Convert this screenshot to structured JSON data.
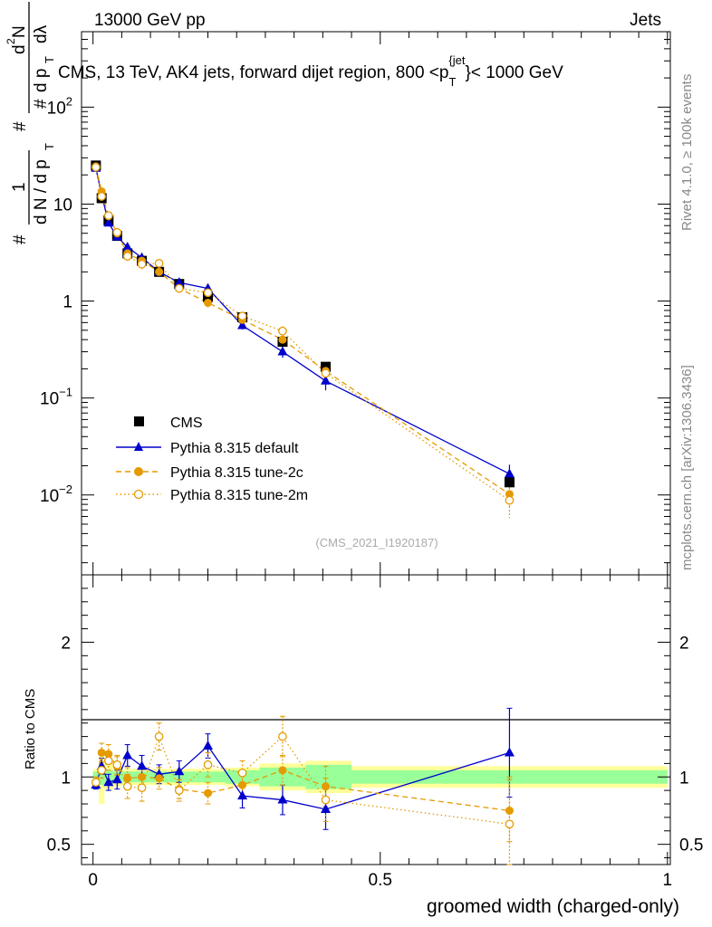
{
  "header": {
    "left": "13000 GeV pp",
    "right": "Jets"
  },
  "side": {
    "rivet": "Rivet 4.1.0, ≥ 100k events",
    "mcplots": "mcplots.cern.ch [arXiv:1306.3436]"
  },
  "watermark": "(CMS_2021_I1920187)",
  "colors": {
    "cms": "#000000",
    "default": "#0000cc",
    "tune2c": "#e59a00",
    "tune2m": "#e59a00",
    "band_inner": "#99ff99",
    "band_outer": "#ffff99"
  },
  "chart_data": [
    {
      "type": "scatter",
      "panel": "main",
      "title": "CMS, 13 TeV, AK4 jets, forward dijet region, 800 <p_T^{jet}< 1000 GeV",
      "title_parts": {
        "a": "CMS, 13 TeV, AK4 jets, forward dijet region, 800 <p",
        "sub": "T",
        "sup": "{jet",
        "b": "}< 1000 GeV"
      },
      "ylabel": "1/dN/dp_T  d²N/dp_T dλ",
      "ylabel_parts": {
        "one": "1",
        "hash": "#",
        "den": "d N / d p",
        "numer": "d",
        "numer_sup": "2",
        "numer_n": "N",
        "den2": "d p",
        "lam": "dλ",
        "t": "T"
      },
      "yscale": "log",
      "ylim": [
        0.0015,
        600
      ],
      "xlim": [
        -0.02,
        1.005
      ],
      "ytick_labels": [
        {
          "v": 0.01,
          "base": "10",
          "exp": "−2"
        },
        {
          "v": 0.1,
          "base": "10",
          "exp": "−1"
        },
        {
          "v": 1,
          "text": "1"
        },
        {
          "v": 10,
          "text": "10"
        },
        {
          "v": 100,
          "base": "10",
          "exp": "2"
        }
      ],
      "legend": {
        "position": "left-middle",
        "entries": [
          "CMS",
          "Pythia 8.315 default",
          "Pythia 8.315 tune-2c",
          "Pythia 8.315 tune-2m"
        ]
      },
      "series": [
        {
          "name": "CMS",
          "x": [
            0.005,
            0.015,
            0.027,
            0.042,
            0.06,
            0.085,
            0.115,
            0.15,
            0.2,
            0.26,
            0.33,
            0.405,
            0.725
          ],
          "y": [
            25,
            11.5,
            6.8,
            4.7,
            3.1,
            2.6,
            2.0,
            1.5,
            1.1,
            0.68,
            0.38,
            0.21,
            0.0135
          ]
        },
        {
          "name": "Pythia 8.315 default",
          "x": [
            0.005,
            0.015,
            0.027,
            0.042,
            0.06,
            0.085,
            0.115,
            0.15,
            0.2,
            0.26,
            0.33,
            0.405,
            0.725
          ],
          "y": [
            23.5,
            12.5,
            6.4,
            4.6,
            3.6,
            2.8,
            2.0,
            1.55,
            1.35,
            0.56,
            0.3,
            0.15,
            0.0165
          ],
          "yerr": [
            0.6,
            0.5,
            0.35,
            0.3,
            0.3,
            0.25,
            0.15,
            0.1,
            0.15,
            0.05,
            0.04,
            0.03,
            0.004
          ]
        },
        {
          "name": "Pythia 8.315 tune-2c",
          "x": [
            0.005,
            0.015,
            0.027,
            0.042,
            0.06,
            0.085,
            0.115,
            0.15,
            0.2,
            0.26,
            0.33,
            0.405,
            0.725
          ],
          "y": [
            24.5,
            13.5,
            7.5,
            5.0,
            3.1,
            2.6,
            2.0,
            1.35,
            0.96,
            0.64,
            0.4,
            0.19,
            0.0102
          ],
          "yerr": [
            0.6,
            0.5,
            0.35,
            0.3,
            0.3,
            0.25,
            0.15,
            0.1,
            0.1,
            0.05,
            0.04,
            0.03,
            0.003
          ]
        },
        {
          "name": "Pythia 8.315 tune-2m",
          "x": [
            0.005,
            0.015,
            0.027,
            0.042,
            0.06,
            0.085,
            0.115,
            0.15,
            0.2,
            0.26,
            0.33,
            0.405,
            0.725
          ],
          "y": [
            24.0,
            12.0,
            7.6,
            5.1,
            2.9,
            2.4,
            2.45,
            1.35,
            1.22,
            0.7,
            0.49,
            0.18,
            0.0088
          ],
          "yerr": [
            0.6,
            0.5,
            0.35,
            0.3,
            0.3,
            0.25,
            0.2,
            0.1,
            0.12,
            0.06,
            0.06,
            0.03,
            0.003
          ]
        }
      ]
    },
    {
      "type": "scatter",
      "panel": "ratio",
      "ylabel": "Ratio to CMS",
      "xlabel": "groomed width (charged-only)",
      "ylim": [
        0.35,
        2.5
      ],
      "xlim": [
        -0.02,
        1.005
      ],
      "ytick_labels": [
        "0.5",
        "1",
        "2"
      ],
      "xtick_labels": [
        "0",
        "0.5",
        "1"
      ],
      "bins": [
        0,
        0.01,
        0.02,
        0.035,
        0.05,
        0.07,
        0.1,
        0.13,
        0.17,
        0.23,
        0.29,
        0.37,
        0.45,
        1.0
      ],
      "band_inner_halfwidth": [
        0.04,
        0.06,
        0.05,
        0.04,
        0.04,
        0.04,
        0.04,
        0.04,
        0.04,
        0.05,
        0.07,
        0.09,
        0.05
      ],
      "band_outer_halfwidth": [
        0.06,
        0.2,
        0.1,
        0.07,
        0.06,
        0.06,
        0.06,
        0.06,
        0.06,
        0.07,
        0.1,
        0.12,
        0.08
      ],
      "series": [
        {
          "name": "Pythia 8.315 default",
          "x": [
            0.005,
            0.015,
            0.027,
            0.042,
            0.06,
            0.085,
            0.115,
            0.15,
            0.2,
            0.26,
            0.33,
            0.405,
            0.725
          ],
          "y": [
            0.94,
            1.08,
            0.96,
            0.98,
            1.16,
            1.08,
            1.02,
            1.04,
            1.23,
            0.86,
            0.83,
            0.76,
            1.18
          ],
          "yerr": [
            0.03,
            0.06,
            0.06,
            0.07,
            0.08,
            0.08,
            0.07,
            0.08,
            0.09,
            0.09,
            0.11,
            0.15,
            0.33
          ]
        },
        {
          "name": "Pythia 8.315 tune-2c",
          "x": [
            0.005,
            0.015,
            0.027,
            0.042,
            0.06,
            0.085,
            0.115,
            0.15,
            0.2,
            0.26,
            0.33,
            0.405,
            0.725
          ],
          "y": [
            0.96,
            1.18,
            1.17,
            1.08,
            0.99,
            1.0,
            0.99,
            0.91,
            0.88,
            0.94,
            1.05,
            0.93,
            0.75
          ],
          "yerr": [
            0.03,
            0.07,
            0.07,
            0.07,
            0.08,
            0.08,
            0.08,
            0.07,
            0.08,
            0.08,
            0.11,
            0.15,
            0.23
          ]
        },
        {
          "name": "Pythia 8.315 tune-2m",
          "x": [
            0.005,
            0.015,
            0.027,
            0.042,
            0.06,
            0.085,
            0.115,
            0.15,
            0.2,
            0.26,
            0.33,
            0.405,
            0.725
          ],
          "y": [
            0.96,
            1.05,
            1.12,
            1.09,
            0.93,
            0.92,
            1.3,
            0.9,
            1.09,
            1.03,
            1.3,
            0.83,
            0.65
          ],
          "yerr": [
            0.04,
            0.06,
            0.07,
            0.07,
            0.09,
            0.1,
            0.1,
            0.08,
            0.09,
            0.09,
            0.15,
            0.16,
            0.35
          ]
        }
      ]
    }
  ]
}
